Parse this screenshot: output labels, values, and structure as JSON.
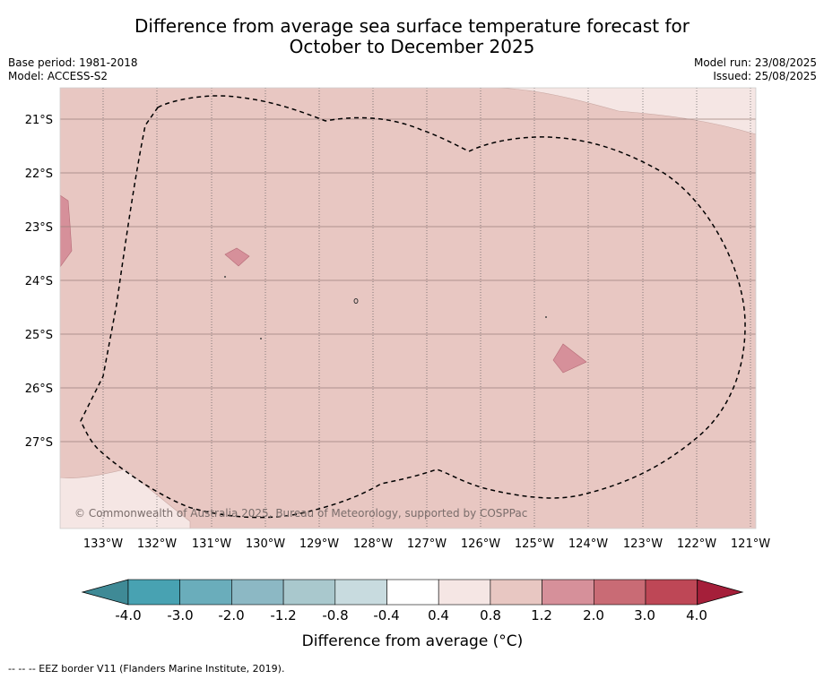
{
  "title_line1": "Difference from average sea surface temperature forecast for",
  "title_line2": "October to December 2025",
  "base_period": "Base period: 1981-2018",
  "model": "Model: ACCESS-S2",
  "model_run": "Model run: 23/08/2025",
  "issued": "Issued: 25/08/2025",
  "copyright": "© Commonwealth of Australia 2025, Bureau of Meteorology, supported by COSPPac",
  "lon_ticks": [
    "133°W",
    "132°W",
    "131°W",
    "130°W",
    "129°W",
    "128°W",
    "127°W",
    "126°W",
    "125°W",
    "124°W",
    "123°W",
    "122°W",
    "121°W"
  ],
  "lat_ticks": [
    "21°S",
    "22°S",
    "23°S",
    "24°S",
    "25°S",
    "26°S",
    "27°S"
  ],
  "colorbar": {
    "title": "Difference from average (°C)",
    "labels": [
      "-4.0",
      "-3.0",
      "-2.0",
      "-1.2",
      "-0.8",
      "-0.4",
      "0.4",
      "0.8",
      "1.2",
      "2.0",
      "3.0",
      "4.0"
    ],
    "colors": [
      "#3f8a96",
      "#48a2b2",
      "#6aadbb",
      "#8cb8c4",
      "#a9c8cd",
      "#c8dbdf",
      "#ffffff",
      "#f5e6e4",
      "#e8c7c2",
      "#d6909a",
      "#c96b75",
      "#be4756",
      "#a51f3a"
    ]
  },
  "footer": "--  --  -- EEZ border V11 (Flanders Marine Institute, 2019).",
  "colors": {
    "base_fill": "#e8c7c2",
    "light_fill": "#f5e6e4",
    "warm_fill": "#d6909a"
  }
}
